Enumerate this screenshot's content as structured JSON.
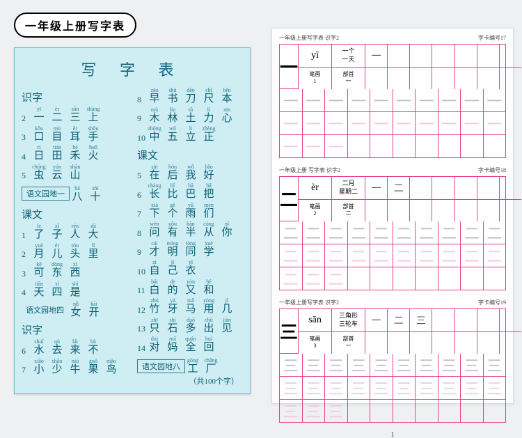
{
  "title": "一年级上册写字表",
  "blue": {
    "heading": "写 字 表",
    "footer": "（共100个字）",
    "left": [
      {
        "section": "识字"
      },
      {
        "n": "2",
        "items": [
          {
            "p": "yī",
            "c": "一"
          },
          {
            "p": "èr",
            "c": "二"
          },
          {
            "p": "sān",
            "c": "三"
          },
          {
            "p": "shàng",
            "c": "上"
          }
        ]
      },
      {
        "n": "3",
        "items": [
          {
            "p": "kǒu",
            "c": "口"
          },
          {
            "p": "mù",
            "c": "目"
          },
          {
            "p": "ěr",
            "c": "耳"
          },
          {
            "p": "shǒu",
            "c": "手"
          }
        ]
      },
      {
        "n": "4",
        "items": [
          {
            "p": "rì",
            "c": "日"
          },
          {
            "p": "tián",
            "c": "田"
          },
          {
            "p": "hé",
            "c": "禾"
          },
          {
            "p": "huǒ",
            "c": "火"
          }
        ]
      },
      {
        "n": "5",
        "items": [
          {
            "p": "chóng",
            "c": "虫"
          },
          {
            "p": "yún",
            "c": "云"
          },
          {
            "p": "shān",
            "c": "山"
          }
        ]
      },
      {
        "chip": "语文园地一",
        "tail": [
          {
            "p": "bā",
            "c": "八"
          },
          {
            "p": "shí",
            "c": "十"
          }
        ]
      },
      {
        "section": "课文"
      },
      {
        "n": "1",
        "items": [
          {
            "p": "le",
            "c": "了"
          },
          {
            "p": "zǐ",
            "c": "子"
          },
          {
            "p": "rén",
            "c": "人"
          },
          {
            "p": "dà",
            "c": "大"
          }
        ]
      },
      {
        "n": "2",
        "items": [
          {
            "p": "yuè",
            "c": "月"
          },
          {
            "p": "ér",
            "c": "儿"
          },
          {
            "p": "tóu",
            "c": "头"
          },
          {
            "p": "lǐ",
            "c": "里"
          }
        ]
      },
      {
        "n": "3",
        "items": [
          {
            "p": "kě",
            "c": "可"
          },
          {
            "p": "dōng",
            "c": "东"
          },
          {
            "p": "xī",
            "c": "西"
          }
        ]
      },
      {
        "n": "4",
        "items": [
          {
            "p": "tiān",
            "c": "天"
          },
          {
            "p": "sì",
            "c": "四"
          },
          {
            "p": "shì",
            "c": "是"
          }
        ]
      },
      {
        "plain": "语文园地四",
        "tail": [
          {
            "p": "nǚ",
            "c": "女"
          },
          {
            "p": "kāi",
            "c": "开"
          }
        ]
      },
      {
        "section": "识字"
      },
      {
        "n": "6",
        "items": [
          {
            "p": "shuǐ",
            "c": "水"
          },
          {
            "p": "qù",
            "c": "去"
          },
          {
            "p": "lái",
            "c": "来"
          },
          {
            "p": "bù",
            "c": "不"
          }
        ]
      },
      {
        "n": "7",
        "items": [
          {
            "p": "xiǎo",
            "c": "小"
          },
          {
            "p": "shǎo",
            "c": "少"
          },
          {
            "p": "niú",
            "c": "牛"
          },
          {
            "p": "guǒ",
            "c": "果"
          },
          {
            "p": "niǎo",
            "c": "鸟"
          }
        ]
      }
    ],
    "right": [
      {
        "n": "8",
        "items": [
          {
            "p": "zǎo",
            "c": "早"
          },
          {
            "p": "shū",
            "c": "书"
          },
          {
            "p": "dāo",
            "c": "刀"
          },
          {
            "p": "chǐ",
            "c": "尺"
          },
          {
            "p": "běn",
            "c": "本"
          }
        ]
      },
      {
        "n": "9",
        "items": [
          {
            "p": "mù",
            "c": "木"
          },
          {
            "p": "lín",
            "c": "林"
          },
          {
            "p": "tǔ",
            "c": "土"
          },
          {
            "p": "lì",
            "c": "力"
          },
          {
            "p": "xīn",
            "c": "心"
          }
        ]
      },
      {
        "n": "10",
        "items": [
          {
            "p": "zhōng",
            "c": "中"
          },
          {
            "p": "wǔ",
            "c": "五"
          },
          {
            "p": "lì",
            "c": "立"
          },
          {
            "p": "zhèng",
            "c": "正"
          }
        ]
      },
      {
        "section": "课文"
      },
      {
        "n": "5",
        "items": [
          {
            "p": "zài",
            "c": "在"
          },
          {
            "p": "hòu",
            "c": "后"
          },
          {
            "p": "wǒ",
            "c": "我"
          },
          {
            "p": "hǎo",
            "c": "好"
          }
        ]
      },
      {
        "n": "6",
        "items": [
          {
            "p": "cháng",
            "c": "长"
          },
          {
            "p": "bǐ",
            "c": "比"
          },
          {
            "p": "bā",
            "c": "巴"
          },
          {
            "p": "bǎ",
            "c": "把"
          }
        ]
      },
      {
        "n": "7",
        "items": [
          {
            "p": "xià",
            "c": "下"
          },
          {
            "p": "gè",
            "c": "个"
          },
          {
            "p": "yǔ",
            "c": "雨"
          },
          {
            "p": "men",
            "c": "们"
          }
        ]
      },
      {
        "n": "8",
        "items": [
          {
            "p": "wèn",
            "c": "问"
          },
          {
            "p": "yǒu",
            "c": "有"
          },
          {
            "p": "bàn",
            "c": "半"
          },
          {
            "p": "cóng",
            "c": "从"
          },
          {
            "p": "nǐ",
            "c": "你"
          }
        ]
      },
      {
        "n": "9",
        "items": [
          {
            "p": "cái",
            "c": "才"
          },
          {
            "p": "míng",
            "c": "明"
          },
          {
            "p": "tóng",
            "c": "同"
          },
          {
            "p": "xué",
            "c": "学"
          }
        ]
      },
      {
        "n": "10",
        "items": [
          {
            "p": "zì",
            "c": "自"
          },
          {
            "p": "jǐ",
            "c": "己"
          },
          {
            "p": "yī",
            "c": "衣"
          }
        ]
      },
      {
        "n": "11",
        "items": [
          {
            "p": "bái",
            "c": "白"
          },
          {
            "p": "de",
            "c": "的"
          },
          {
            "p": "yòu",
            "c": "又"
          },
          {
            "p": "hé",
            "c": "和"
          }
        ]
      },
      {
        "n": "12",
        "items": [
          {
            "p": "zhú",
            "c": "竹"
          },
          {
            "p": "yá",
            "c": "牙"
          },
          {
            "p": "mǎ",
            "c": "马"
          },
          {
            "p": "yòng",
            "c": "用"
          },
          {
            "p": "jǐ",
            "c": "几"
          }
        ]
      },
      {
        "n": "13",
        "items": [
          {
            "p": "zhī",
            "c": "只"
          },
          {
            "p": "shí",
            "c": "石"
          },
          {
            "p": "duō",
            "c": "多"
          },
          {
            "p": "chū",
            "c": "出"
          },
          {
            "p": "jiàn",
            "c": "见"
          }
        ]
      },
      {
        "n": "14",
        "items": [
          {
            "p": "duì",
            "c": "对"
          },
          {
            "p": "mā",
            "c": "妈"
          },
          {
            "p": "quán",
            "c": "全"
          },
          {
            "p": "huí",
            "c": "回"
          }
        ]
      },
      {
        "chip": "语文园地八",
        "tail": [
          {
            "p": "gōng",
            "c": "工"
          },
          {
            "p": "chǎng",
            "c": "厂"
          }
        ]
      }
    ]
  },
  "practice": {
    "blocks": [
      {
        "headerL": "一年级上册写字表 识字2",
        "headerR": "字卡编号17",
        "big": "一",
        "pinyin": "yī",
        "words": "一个\n一天",
        "strokes": "笔画\n1",
        "radical": "部首\n一",
        "strokeSeq": [
          "一"
        ],
        "traced": "一",
        "blankCount": 7
      },
      {
        "headerL": "一年级上册 写字表 识字2",
        "headerR": "字卡编号18",
        "big": "二",
        "pinyin": "èr",
        "words": "二月\n星期二",
        "strokes": "笔画\n2",
        "radical": "部首\n二",
        "strokeSeq": [
          "一",
          "二"
        ],
        "traced": "二",
        "blankCount": 7
      },
      {
        "headerL": "一年级上册写字表 识字2",
        "headerR": "字卡编号19",
        "big": "三",
        "pinyin": "sān",
        "words": "三角形\n三轮车",
        "strokes": "笔画\n3",
        "radical": "部首\n一",
        "strokeSeq": [
          "一",
          "二",
          "三"
        ],
        "traced": "三",
        "blankCount": 7
      }
    ],
    "pageNum": "1"
  }
}
